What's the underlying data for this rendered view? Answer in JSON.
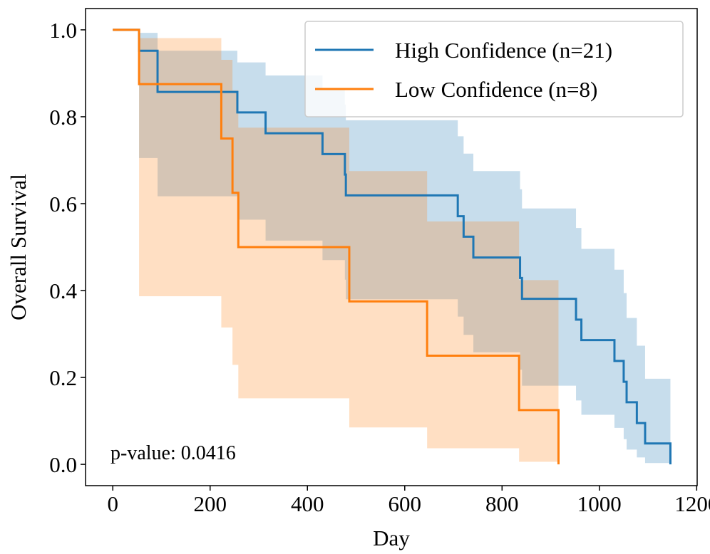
{
  "chart_data": {
    "type": "step",
    "xlabel": "Day",
    "ylabel": "Overall Survival",
    "annotation": "p-value: 0.0416",
    "xlim": [
      -56,
      1201
    ],
    "ylim": [
      -0.049,
      1.049
    ],
    "xticks": [
      0,
      200,
      400,
      600,
      800,
      1000,
      1200
    ],
    "yticks": [
      {
        "value": 0,
        "label": "0.0"
      },
      {
        "value": 0.2,
        "label": "0.2"
      },
      {
        "value": 0.4,
        "label": "0.4"
      },
      {
        "value": 0.6,
        "label": "0.6"
      },
      {
        "value": 0.8,
        "label": "0.8"
      },
      {
        "value": 1,
        "label": "1.0"
      }
    ],
    "legend": "upper right",
    "series": [
      {
        "name": "High Confidence (n=21)",
        "color": "#1f77b4",
        "x": [
          0,
          54,
          92,
          256,
          314,
          431,
          477,
          479,
          709,
          721,
          741,
          837,
          841,
          952,
          963,
          1031,
          1050,
          1056,
          1077,
          1094,
          1146
        ],
        "values": [
          1.0,
          0.952,
          0.857,
          0.81,
          0.762,
          0.714,
          0.667,
          0.619,
          0.571,
          0.524,
          0.476,
          0.429,
          0.381,
          0.333,
          0.286,
          0.238,
          0.19,
          0.143,
          0.095,
          0.048,
          0.0
        ],
        "ci_lower": [
          1.0,
          0.705,
          0.617,
          0.563,
          0.515,
          0.47,
          0.425,
          0.38,
          0.34,
          0.298,
          0.258,
          0.218,
          0.181,
          0.147,
          0.114,
          0.084,
          0.058,
          0.034,
          0.016,
          0.003,
          null
        ],
        "ci_upper": [
          1.0,
          0.993,
          0.952,
          0.925,
          0.895,
          0.862,
          0.828,
          0.792,
          0.755,
          0.715,
          0.675,
          0.633,
          0.589,
          0.544,
          0.496,
          0.448,
          0.394,
          0.337,
          0.273,
          0.197,
          null
        ]
      },
      {
        "name": "Low Confidence (n=8)",
        "color": "#ff7f0e",
        "x": [
          0,
          54,
          223,
          246,
          258,
          486,
          646,
          835,
          916
        ],
        "values": [
          1.0,
          0.875,
          0.75,
          0.625,
          0.5,
          0.375,
          0.25,
          0.125,
          0.0
        ],
        "ci_lower": [
          1.0,
          0.387,
          0.315,
          0.229,
          0.152,
          0.085,
          0.037,
          0.006,
          null
        ],
        "ci_upper": [
          1.0,
          0.981,
          0.931,
          0.861,
          0.775,
          0.675,
          0.559,
          0.424,
          null
        ]
      }
    ]
  }
}
